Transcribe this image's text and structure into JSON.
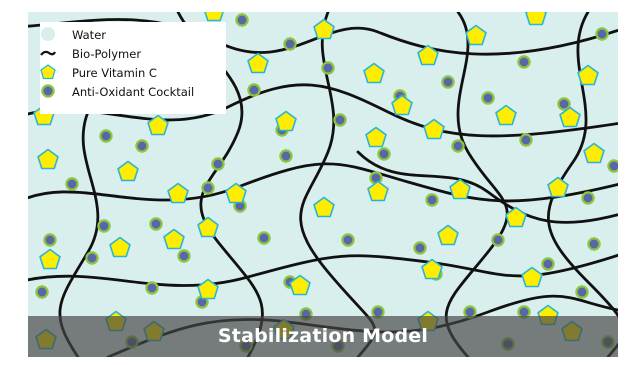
{
  "legend": {
    "water": "Water",
    "polymer": "Bio-Polymer",
    "vitamin_c": "Pure Vitamin C",
    "antioxidant": "Anti-Oxidant Cocktail"
  },
  "banner": {
    "title": "Stabilization Model"
  },
  "colors": {
    "water": "#d9efed",
    "polymer": "#111111",
    "vitamin_c_fill": "#ffed00",
    "vitamin_c_stroke": "#29b6d6",
    "antioxidant_fill": "#5a67a6",
    "antioxidant_ring": "#8dc63f",
    "banner": "#464646",
    "banner_text": "#ffffff"
  }
}
